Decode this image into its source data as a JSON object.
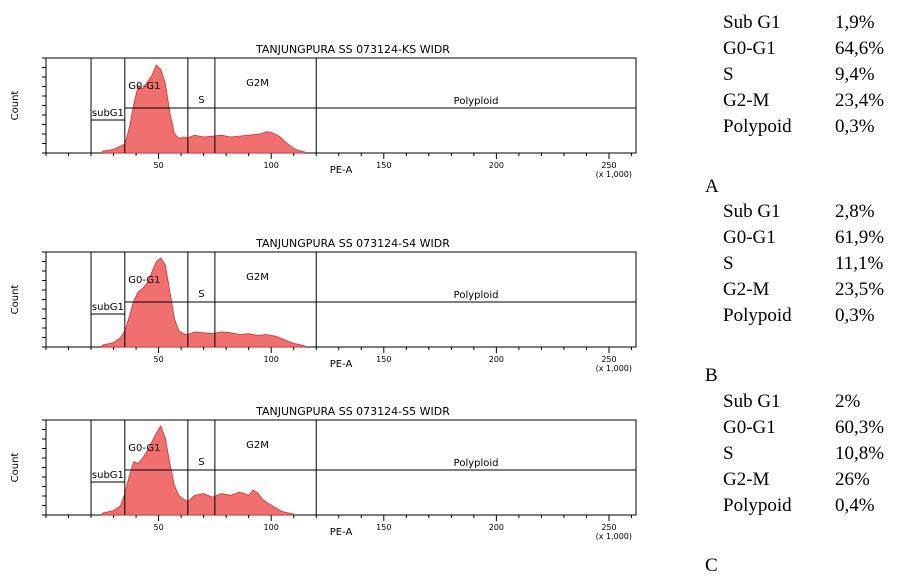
{
  "colors": {
    "histogram_fill": "#f07070",
    "histogram_edge": "#d43030",
    "gate_line": "#000000"
  },
  "panels": [
    {
      "letter": "A",
      "title": "TANJUNGPURA SS 073124-KS WIDR",
      "gates": [
        "subG1",
        "G0-G1",
        "S",
        "G2M",
        "Polyploid"
      ],
      "stats": [
        {
          "name": "Sub G1",
          "value": "1,9%"
        },
        {
          "name": "G0-G1",
          "value": "64,6%"
        },
        {
          "name": "S",
          "value": "9,4%"
        },
        {
          "name": "G2-M",
          "value": "23,4%"
        },
        {
          "name": "Polypoid",
          "value": "0,3%"
        }
      ]
    },
    {
      "letter": "B",
      "title": "TANJUNGPURA SS 073124-S4 WIDR",
      "gates": [
        "subG1",
        "G0-G1",
        "S",
        "G2M",
        "Polyploid"
      ],
      "stats": [
        {
          "name": "Sub G1",
          "value": "2,8%"
        },
        {
          "name": "G0-G1",
          "value": "61,9%"
        },
        {
          "name": "S",
          "value": "11,1%"
        },
        {
          "name": "G2-M",
          "value": "23,5%"
        },
        {
          "name": "Polypoid",
          "value": "0,3%"
        }
      ]
    },
    {
      "letter": "C",
      "title": "TANJUNGPURA SS 073124-S5 WIDR",
      "gates": [
        "subG1",
        "G0-G1",
        "S",
        "G2M",
        "Polyploid"
      ],
      "stats": [
        {
          "name": "Sub G1",
          "value": "2%"
        },
        {
          "name": "G0-G1",
          "value": "60,3%"
        },
        {
          "name": "S",
          "value": "10,8%"
        },
        {
          "name": "G2-M",
          "value": "26%"
        },
        {
          "name": "Polypoid",
          "value": "0,4%"
        }
      ]
    }
  ],
  "chart_data": [
    {
      "type": "area",
      "title": "TANJUNGPURA SS 073124-KS WIDR",
      "xlabel": "PE-A",
      "ylabel": "Count",
      "x_multiplier_label": "(x 1,000)",
      "xlim": [
        0,
        262
      ],
      "x_ticks": [
        50,
        100,
        150,
        200,
        250
      ],
      "gate_bounds": {
        "subG1": [
          20,
          35
        ],
        "G0-G1": [
          35,
          63
        ],
        "S": [
          63,
          75
        ],
        "G2M": [
          75,
          120
        ],
        "Polyploid": [
          120,
          262
        ]
      },
      "x": [
        25,
        30,
        35,
        37,
        39,
        41,
        43,
        45,
        47,
        49,
        51,
        53,
        55,
        57,
        59,
        61,
        63,
        66,
        70,
        74,
        78,
        82,
        86,
        90,
        94,
        96,
        98,
        100,
        102,
        104,
        106,
        108,
        110,
        112,
        115
      ],
      "y": [
        0.02,
        0.04,
        0.1,
        0.28,
        0.55,
        0.76,
        0.72,
        0.8,
        0.87,
        0.99,
        0.94,
        0.78,
        0.45,
        0.22,
        0.16,
        0.18,
        0.17,
        0.2,
        0.18,
        0.19,
        0.2,
        0.18,
        0.19,
        0.2,
        0.21,
        0.22,
        0.24,
        0.23,
        0.21,
        0.18,
        0.13,
        0.09,
        0.05,
        0.03,
        0.01
      ]
    },
    {
      "type": "area",
      "title": "TANJUNGPURA SS 073124-S4 WIDR",
      "xlabel": "PE-A",
      "ylabel": "Count",
      "x_multiplier_label": "(x 1,000)",
      "xlim": [
        0,
        262
      ],
      "x_ticks": [
        50,
        100,
        150,
        200,
        250
      ],
      "gate_bounds": {
        "subG1": [
          20,
          35
        ],
        "G0-G1": [
          35,
          63
        ],
        "S": [
          63,
          75
        ],
        "G2M": [
          75,
          120
        ],
        "Polyploid": [
          120,
          262
        ]
      },
      "x": [
        25,
        30,
        33,
        35,
        37,
        39,
        41,
        43,
        45,
        47,
        49,
        51,
        53,
        55,
        57,
        59,
        61,
        63,
        66,
        70,
        74,
        78,
        82,
        86,
        90,
        94,
        98,
        100,
        102,
        104,
        106,
        108,
        110,
        112,
        115
      ],
      "y": [
        0.02,
        0.05,
        0.1,
        0.18,
        0.34,
        0.52,
        0.62,
        0.66,
        0.72,
        0.84,
        0.96,
        1.0,
        0.92,
        0.62,
        0.32,
        0.18,
        0.15,
        0.14,
        0.17,
        0.16,
        0.15,
        0.17,
        0.16,
        0.14,
        0.15,
        0.13,
        0.14,
        0.13,
        0.12,
        0.1,
        0.08,
        0.06,
        0.04,
        0.03,
        0.01
      ]
    },
    {
      "type": "area",
      "title": "TANJUNGPURA SS 073124-S5 WIDR",
      "xlabel": "PE-A",
      "ylabel": "Count",
      "x_multiplier_label": "(x 1,000)",
      "xlim": [
        0,
        262
      ],
      "x_ticks": [
        50,
        100,
        150,
        200,
        250
      ],
      "gate_bounds": {
        "subG1": [
          20,
          35
        ],
        "G0-G1": [
          35,
          63
        ],
        "S": [
          63,
          75
        ],
        "G2M": [
          75,
          120
        ],
        "Polyploid": [
          120,
          262
        ]
      },
      "x": [
        25,
        30,
        33,
        35,
        37,
        39,
        41,
        43,
        45,
        47,
        49,
        51,
        53,
        55,
        57,
        59,
        61,
        63,
        66,
        70,
        74,
        78,
        82,
        86,
        88,
        90,
        92,
        94,
        96,
        98,
        100,
        102,
        104,
        106,
        108,
        110
      ],
      "y": [
        0.02,
        0.05,
        0.1,
        0.24,
        0.44,
        0.6,
        0.58,
        0.64,
        0.72,
        0.82,
        0.92,
        1.0,
        0.86,
        0.58,
        0.33,
        0.22,
        0.18,
        0.15,
        0.22,
        0.24,
        0.2,
        0.24,
        0.22,
        0.26,
        0.24,
        0.22,
        0.28,
        0.25,
        0.18,
        0.14,
        0.11,
        0.08,
        0.05,
        0.03,
        0.02,
        0.01
      ]
    }
  ]
}
